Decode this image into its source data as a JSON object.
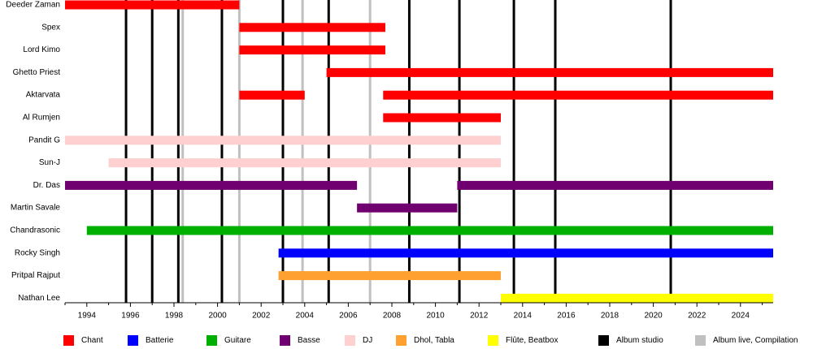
{
  "chart_data": {
    "type": "timeline",
    "title": "",
    "xlabel": "",
    "ylabel": "",
    "xlim": [
      1993.0,
      2025.5
    ],
    "x_ticks": [
      1994,
      1996,
      1998,
      2000,
      2002,
      2004,
      2006,
      2008,
      2010,
      2012,
      2014,
      2016,
      2018,
      2020,
      2022,
      2024
    ],
    "members": [
      "Deeder Zaman",
      "Spex",
      "Lord Kimo",
      "Ghetto Priest",
      "Aktarvata",
      "Al Rumjen",
      "Pandit G",
      "Sun-J",
      "Dr. Das",
      "Martin Savale",
      "Chandrasonic",
      "Rocky Singh",
      "Pritpal Rajput",
      "Nathan Lee"
    ],
    "roles": [
      {
        "key": "chant",
        "label": "Chant",
        "color": "#ff0000"
      },
      {
        "key": "batterie",
        "label": "Batterie",
        "color": "#0000ff"
      },
      {
        "key": "guitare",
        "label": "Guitare",
        "color": "#00b000"
      },
      {
        "key": "basse",
        "label": "Basse",
        "color": "#700070"
      },
      {
        "key": "dj",
        "label": "DJ",
        "color": "#ffd0d0"
      },
      {
        "key": "dhol",
        "label": "Dhol, Tabla",
        "color": "#ffa030"
      },
      {
        "key": "flute",
        "label": "Flûte, Beatbox",
        "color": "#ffff00"
      },
      {
        "key": "studio",
        "label": "Album studio",
        "color": "#000000"
      },
      {
        "key": "live",
        "label": "Album live, Compilation",
        "color": "#c0c0c0"
      }
    ],
    "bars": [
      {
        "member": "Deeder Zaman",
        "role": "chant",
        "start": 1993.0,
        "end": 2001.0
      },
      {
        "member": "Spex",
        "role": "chant",
        "start": 2001.0,
        "end": 2007.7
      },
      {
        "member": "Lord Kimo",
        "role": "chant",
        "start": 2001.0,
        "end": 2007.7
      },
      {
        "member": "Ghetto Priest",
        "role": "chant",
        "start": 2005.0,
        "end": 2025.5
      },
      {
        "member": "Aktarvata",
        "role": "chant",
        "start": 2001.0,
        "end": 2004.0
      },
      {
        "member": "Aktarvata",
        "role": "chant",
        "start": 2007.6,
        "end": 2025.5
      },
      {
        "member": "Al Rumjen",
        "role": "chant",
        "start": 2007.6,
        "end": 2013.0
      },
      {
        "member": "Pandit G",
        "role": "dj",
        "start": 1993.0,
        "end": 2013.0
      },
      {
        "member": "Sun-J",
        "role": "dj",
        "start": 1995.0,
        "end": 2013.0
      },
      {
        "member": "Dr. Das",
        "role": "basse",
        "start": 1993.0,
        "end": 2006.4
      },
      {
        "member": "Dr. Das",
        "role": "basse",
        "start": 2011.0,
        "end": 2025.5
      },
      {
        "member": "Martin Savale",
        "role": "basse",
        "start": 2006.4,
        "end": 2011.0
      },
      {
        "member": "Chandrasonic",
        "role": "guitare",
        "start": 1994.0,
        "end": 2025.5
      },
      {
        "member": "Rocky Singh",
        "role": "batterie",
        "start": 2002.8,
        "end": 2025.5
      },
      {
        "member": "Pritpal Rajput",
        "role": "dhol",
        "start": 2002.8,
        "end": 2013.0
      },
      {
        "member": "Nathan Lee",
        "role": "flute",
        "start": 2013.0,
        "end": 2025.5
      }
    ],
    "albums": [
      {
        "year": 1995.8,
        "role": "studio"
      },
      {
        "year": 1997.0,
        "role": "studio"
      },
      {
        "year": 1998.2,
        "role": "studio"
      },
      {
        "year": 1998.4,
        "role": "live"
      },
      {
        "year": 2000.2,
        "role": "studio"
      },
      {
        "year": 2001.0,
        "role": "live"
      },
      {
        "year": 2003.0,
        "role": "studio"
      },
      {
        "year": 2003.9,
        "role": "live"
      },
      {
        "year": 2005.1,
        "role": "studio"
      },
      {
        "year": 2007.0,
        "role": "live"
      },
      {
        "year": 2008.8,
        "role": "studio"
      },
      {
        "year": 2011.1,
        "role": "studio"
      },
      {
        "year": 2013.6,
        "role": "studio"
      },
      {
        "year": 2015.5,
        "role": "studio"
      },
      {
        "year": 2020.8,
        "role": "studio"
      }
    ]
  }
}
